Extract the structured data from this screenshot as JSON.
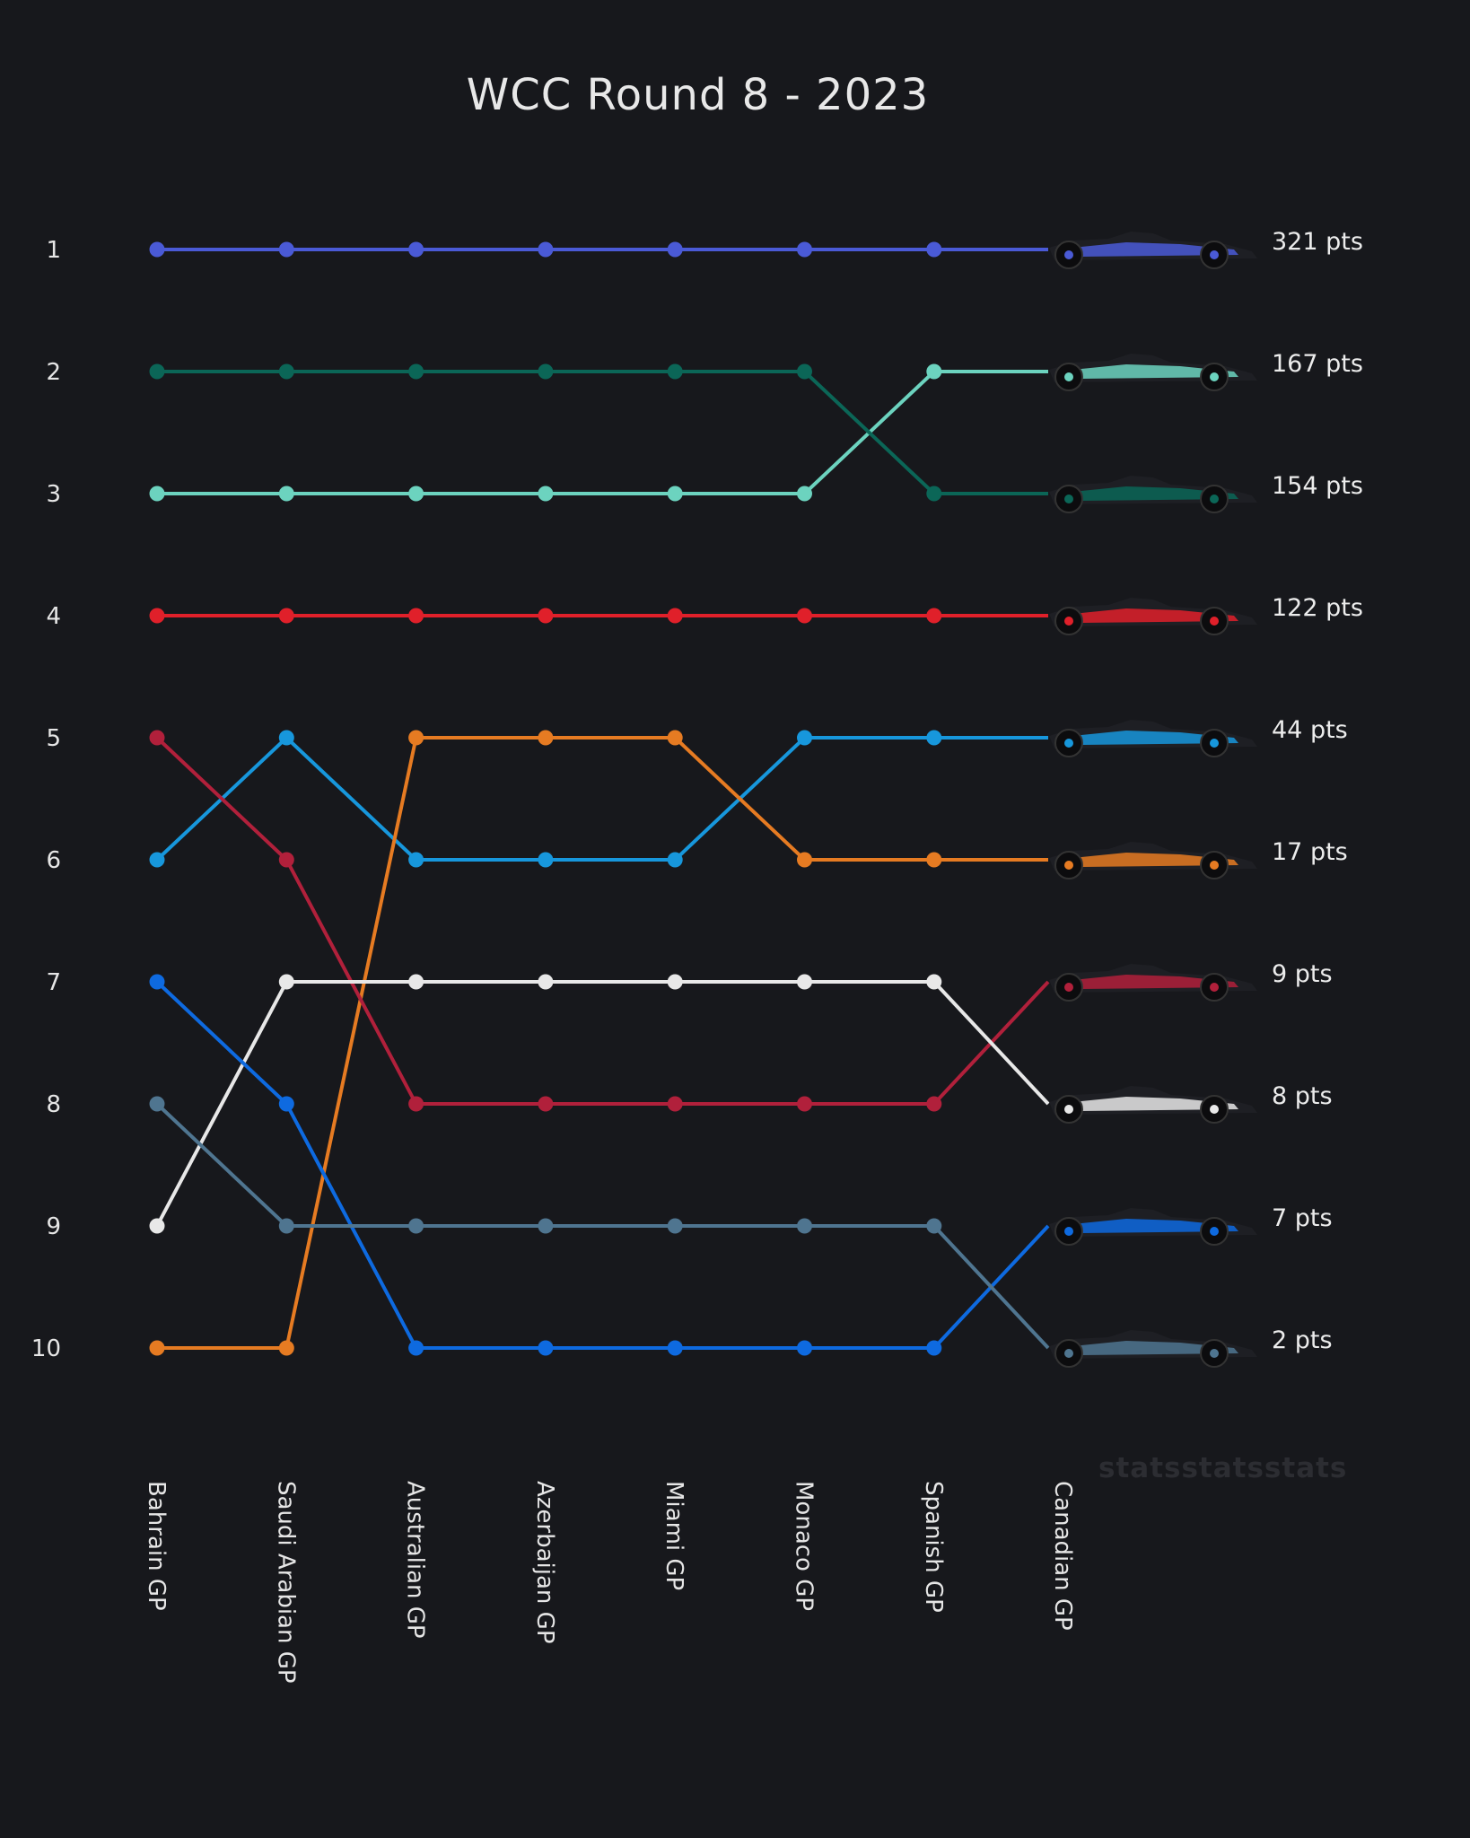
{
  "chart_data": {
    "type": "line",
    "subtype": "bump",
    "title": "WCC Round 8 - 2023",
    "categories": [
      "Bahrain GP",
      "Saudi Arabian GP",
      "Australian GP",
      "Azerbaijan GP",
      "Miami GP",
      "Monaco GP",
      "Spanish GP",
      "Canadian GP"
    ],
    "y_ticks": [
      "1",
      "2",
      "3",
      "4",
      "5",
      "6",
      "7",
      "8",
      "9",
      "10"
    ],
    "ylim": [
      10,
      1
    ],
    "y_inverted": true,
    "grid": false,
    "series": [
      {
        "color": "#4a5ad6",
        "car": "red-bull-car",
        "values": [
          1,
          1,
          1,
          1,
          1,
          1,
          1,
          1
        ],
        "final_label": "321 pts"
      },
      {
        "color": "#6cd3bf",
        "car": "mercedes-car",
        "values": [
          3,
          3,
          3,
          3,
          3,
          3,
          2,
          2
        ],
        "final_label": "167 pts"
      },
      {
        "color": "#0b6657",
        "car": "aston-martin-car",
        "values": [
          2,
          2,
          2,
          2,
          2,
          2,
          3,
          3
        ],
        "final_label": "154 pts"
      },
      {
        "color": "#e0202a",
        "car": "ferrari-car",
        "values": [
          4,
          4,
          4,
          4,
          4,
          4,
          4,
          4
        ],
        "final_label": "122 pts"
      },
      {
        "color": "#1797dc",
        "car": "alpine-car",
        "values": [
          6,
          5,
          6,
          6,
          6,
          5,
          5,
          5
        ],
        "final_label": "44 pts"
      },
      {
        "color": "#e67b22",
        "car": "mclaren-car",
        "values": [
          10,
          10,
          5,
          5,
          5,
          6,
          6,
          6
        ],
        "final_label": "17 pts"
      },
      {
        "color": "#b1203b",
        "car": "alfa-romeo-car",
        "values": [
          5,
          6,
          8,
          8,
          8,
          8,
          8,
          7
        ],
        "final_label": "9 pts"
      },
      {
        "color": "#e8e8e8",
        "car": "haas-car",
        "values": [
          9,
          7,
          7,
          7,
          7,
          7,
          7,
          8
        ],
        "final_label": "8 pts"
      },
      {
        "color": "#0e6ae0",
        "car": "williams-car",
        "values": [
          7,
          8,
          10,
          10,
          10,
          10,
          10,
          9
        ],
        "final_label": "7 pts"
      },
      {
        "color": "#4f7590",
        "car": "alphatauri-car",
        "values": [
          8,
          9,
          9,
          9,
          9,
          9,
          9,
          10
        ],
        "final_label": "2 pts"
      }
    ]
  },
  "watermark": "statsstatsstats",
  "background": "#17181c"
}
